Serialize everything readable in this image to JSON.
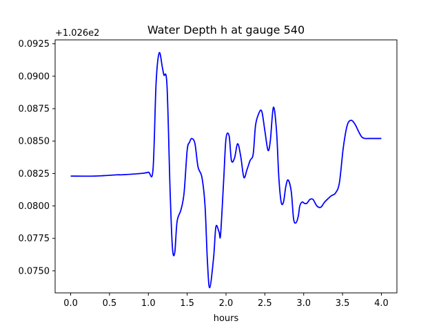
{
  "chart_data": {
    "type": "line",
    "title": "Water Depth h at gauge 540",
    "xlabel": "hours",
    "ylabel": "",
    "y_offset_label": "+1.026e2",
    "y_offset": 102.6,
    "xlim": [
      -0.2,
      4.2
    ],
    "ylim": [
      0.0733,
      0.0928
    ],
    "x_ticks": [
      0.0,
      0.5,
      1.0,
      1.5,
      2.0,
      2.5,
      3.0,
      3.5,
      4.0
    ],
    "x_tick_labels": [
      "0.0",
      "0.5",
      "1.0",
      "1.5",
      "2.0",
      "2.5",
      "3.0",
      "3.5",
      "4.0"
    ],
    "y_ticks": [
      0.075,
      0.0775,
      0.08,
      0.0825,
      0.085,
      0.0875,
      0.09,
      0.0925
    ],
    "y_tick_labels": [
      "0.0750",
      "0.0775",
      "0.0800",
      "0.0825",
      "0.0850",
      "0.0875",
      "0.0900",
      "0.0925"
    ],
    "grid": false,
    "series": [
      {
        "color": "#0000ff",
        "x": [
          0.0,
          0.3,
          0.6,
          0.65,
          0.9,
          1.0,
          1.06,
          1.1,
          1.14,
          1.18,
          1.2,
          1.24,
          1.28,
          1.31,
          1.34,
          1.37,
          1.42,
          1.46,
          1.5,
          1.53,
          1.56,
          1.6,
          1.64,
          1.69,
          1.73,
          1.76,
          1.79,
          1.84,
          1.87,
          1.91,
          1.93,
          1.97,
          2.0,
          2.04,
          2.07,
          2.11,
          2.15,
          2.19,
          2.23,
          2.27,
          2.31,
          2.35,
          2.38,
          2.42,
          2.46,
          2.5,
          2.54,
          2.57,
          2.61,
          2.65,
          2.68,
          2.71,
          2.74,
          2.77,
          2.8,
          2.84,
          2.87,
          2.9,
          2.93,
          2.95,
          2.98,
          3.01,
          3.04,
          3.08,
          3.12,
          3.17,
          3.22,
          3.27,
          3.32,
          3.36,
          3.41,
          3.46,
          3.51,
          3.56,
          3.61,
          3.66,
          3.71,
          3.75,
          3.79,
          3.83,
          3.87,
          3.91,
          3.95,
          4.0
        ],
        "y": [
          0.0823,
          0.0823,
          0.0824,
          0.0824,
          0.0825,
          0.0826,
          0.0828,
          0.0895,
          0.0918,
          0.0907,
          0.0901,
          0.0893,
          0.0812,
          0.0768,
          0.0764,
          0.0788,
          0.0797,
          0.081,
          0.0843,
          0.0849,
          0.0852,
          0.0848,
          0.083,
          0.0822,
          0.08,
          0.0758,
          0.0737,
          0.076,
          0.0784,
          0.078,
          0.0778,
          0.082,
          0.0852,
          0.0854,
          0.0835,
          0.0837,
          0.0848,
          0.0838,
          0.0822,
          0.0828,
          0.0835,
          0.084,
          0.0862,
          0.0871,
          0.0873,
          0.0858,
          0.0843,
          0.085,
          0.0876,
          0.0858,
          0.0822,
          0.0803,
          0.0803,
          0.0815,
          0.082,
          0.0811,
          0.079,
          0.0787,
          0.0792,
          0.08,
          0.0803,
          0.0802,
          0.0802,
          0.0805,
          0.0805,
          0.08,
          0.0799,
          0.0803,
          0.0806,
          0.0808,
          0.081,
          0.0818,
          0.0845,
          0.0862,
          0.0866,
          0.0863,
          0.0857,
          0.0853,
          0.0852,
          0.0852,
          0.0852,
          0.0852,
          0.0852,
          0.0852
        ]
      }
    ]
  }
}
